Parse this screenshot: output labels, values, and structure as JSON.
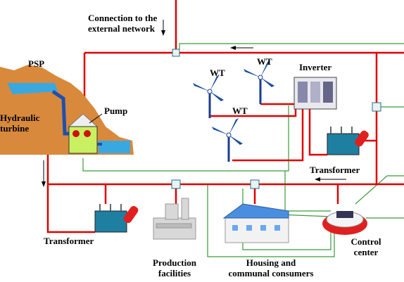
{
  "connection": [
    "Connection to the",
    "external network"
  ],
  "psp": "PSP",
  "hydraulic_turbine": [
    "Hydraulic",
    "turbine"
  ],
  "pump": "Pump",
  "wind_turbines": [
    "WT",
    "WT",
    "WT"
  ],
  "inverter": "Inverter",
  "transformers": [
    "Transformer",
    "Transformer"
  ],
  "production": [
    "Production",
    "facilities"
  ],
  "housing": [
    "Housing and",
    "communal consumers"
  ],
  "control_center": [
    "Control",
    "center"
  ]
}
